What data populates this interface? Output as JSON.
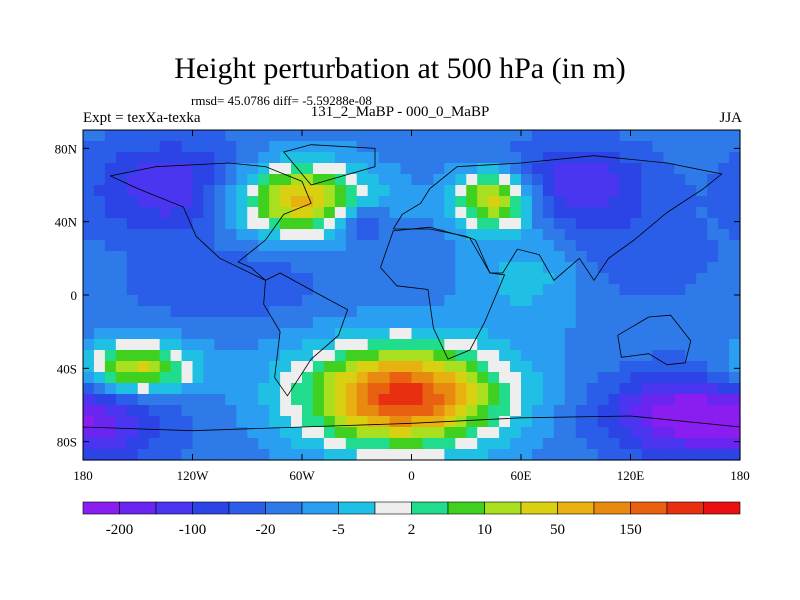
{
  "chart_data": {
    "type": "heatmap",
    "title": "Height perturbation at 500 hPa (in m)",
    "stats_text": "rmsd= 45.0786 diff= -5.59288e-08",
    "left_label": "Expt = texXa-texka",
    "center_label": "131_2_MaBP - 000_0_MaBP",
    "right_label": "JJA",
    "x_ticks": [
      "180",
      "120W",
      "60W",
      "0",
      "60E",
      "120E",
      "180"
    ],
    "y_ticks": [
      "80N",
      "40N",
      "0",
      "40S",
      "80S"
    ],
    "xlim": [
      -180,
      180
    ],
    "ylim": [
      -90,
      90
    ],
    "colorbar": {
      "colors": [
        "#8a1ef0",
        "#6a26f0",
        "#4a36f0",
        "#2c44e6",
        "#2a5ee8",
        "#2e7ae8",
        "#2a9ef0",
        "#20c0e4",
        "#eeeeee",
        "#20dc8c",
        "#40d020",
        "#a8e020",
        "#d8d010",
        "#e8b010",
        "#e88a10",
        "#e86010",
        "#e83010",
        "#e81010"
      ],
      "labels": [
        "-200",
        "-100",
        "-20",
        "-5",
        "2",
        "10",
        "50",
        "150"
      ]
    },
    "fields": {
      "background": 5,
      "blobs": [
        {
          "lon": -130,
          "lat": 58,
          "rlon": 45,
          "rlat": 26,
          "amp": -3.5
        },
        {
          "lon": -62,
          "lat": 52,
          "rlon": 38,
          "rlat": 20,
          "amp": 8.0
        },
        {
          "lon": 45,
          "lat": 52,
          "rlon": 22,
          "rlat": 16,
          "amp": 7.5
        },
        {
          "lon": 90,
          "lat": 60,
          "rlon": 40,
          "rlat": 22,
          "amp": -3.5
        },
        {
          "lon": -28,
          "lat": 40,
          "rlon": 14,
          "rlat": 10,
          "amp": -3.5
        },
        {
          "lon": 120,
          "lat": 20,
          "rlon": 40,
          "rlat": 22,
          "amp": -1.5
        },
        {
          "lon": -100,
          "lat": 5,
          "rlon": 50,
          "rlat": 18,
          "amp": -1.5
        },
        {
          "lon": -5,
          "lat": -55,
          "rlon": 55,
          "rlat": 28,
          "amp": 11.0
        },
        {
          "lon": -150,
          "lat": -40,
          "rlon": 30,
          "rlat": 14,
          "amp": 7.0
        },
        {
          "lon": -170,
          "lat": -70,
          "rlon": 40,
          "rlat": 22,
          "amp": -3.0
        },
        {
          "lon": 145,
          "lat": -65,
          "rlon": 42,
          "rlat": 22,
          "amp": -4.5
        },
        {
          "lon": 65,
          "lat": 10,
          "rlon": 35,
          "rlat": 25,
          "amp": 2.0
        }
      ]
    }
  },
  "grid_note": ""
}
